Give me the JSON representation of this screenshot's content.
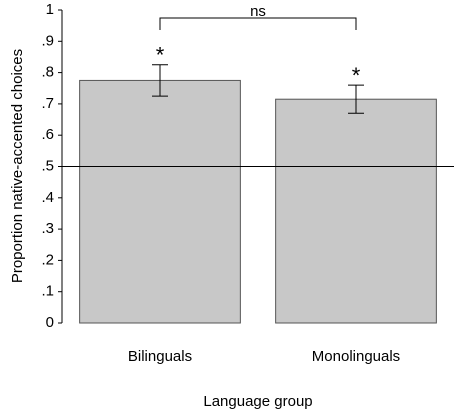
{
  "chart_data": {
    "type": "bar",
    "categories": [
      "Bilinguals",
      "Monolinguals"
    ],
    "values": [
      0.775,
      0.715
    ],
    "errors": [
      0.05,
      0.045
    ],
    "color": "#c8c8c8",
    "x_label": "Language group",
    "y_label": "Proportion native-accented choices",
    "ylim": [
      0,
      1
    ],
    "yticks": [
      0,
      {
        "value": 0.1,
        "label": ".1"
      },
      {
        "value": 0.2,
        "label": ".2"
      },
      {
        "value": 0.3,
        "label": ".3"
      },
      {
        "value": 0.4,
        "label": ".4"
      },
      {
        "value": 0.5,
        "label": ".5"
      },
      {
        "value": 0.6,
        "label": ".6"
      },
      {
        "value": 0.7,
        "label": ".7"
      },
      {
        "value": 0.8,
        "label": ".8"
      },
      {
        "value": 0.9,
        "label": ".9"
      },
      1
    ],
    "hline": 0.5,
    "bar_annotations": [
      "*",
      "*"
    ],
    "comparison_label": "ns"
  }
}
